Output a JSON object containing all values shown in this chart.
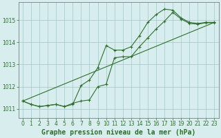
{
  "title": "Graphe pression niveau de la mer (hPa)",
  "background_color": "#cce8d4",
  "plot_bg": "#d8eeee",
  "grid_color": "#aacccc",
  "line_color": "#2d6e2d",
  "xlim": [
    -0.5,
    23.5
  ],
  "ylim": [
    1010.6,
    1015.8
  ],
  "yticks": [
    1011,
    1012,
    1013,
    1014,
    1015
  ],
  "xticks": [
    0,
    1,
    2,
    3,
    4,
    5,
    6,
    7,
    8,
    9,
    10,
    11,
    12,
    13,
    14,
    15,
    16,
    17,
    18,
    19,
    20,
    21,
    22,
    23
  ],
  "series1_x": [
    0,
    1,
    2,
    3,
    4,
    5,
    6,
    7,
    8,
    9,
    10,
    11,
    12,
    13,
    14,
    15,
    16,
    17,
    18,
    19,
    20,
    21,
    22,
    23
  ],
  "series1_y": [
    1011.35,
    1011.2,
    1011.1,
    1011.15,
    1011.2,
    1011.1,
    1011.2,
    1012.05,
    1012.3,
    1012.85,
    1013.85,
    1013.65,
    1013.65,
    1013.8,
    1014.3,
    1014.9,
    1015.25,
    1015.5,
    1015.45,
    1015.1,
    1014.9,
    1014.85,
    1014.9,
    1014.9
  ],
  "series2_x": [
    0,
    1,
    2,
    3,
    4,
    5,
    6,
    7,
    8,
    9,
    10,
    11,
    12,
    13,
    14,
    15,
    16,
    17,
    18,
    19,
    20,
    21,
    22,
    23
  ],
  "series2_y": [
    1011.35,
    1011.2,
    1011.1,
    1011.15,
    1011.2,
    1011.1,
    1011.25,
    1011.35,
    1011.4,
    1012.0,
    1012.1,
    1013.3,
    1013.35,
    1013.35,
    1013.8,
    1014.2,
    1014.6,
    1014.95,
    1015.35,
    1015.05,
    1014.85,
    1014.82,
    1014.88,
    1014.88
  ],
  "series3_x": [
    0,
    23
  ],
  "series3_y": [
    1011.35,
    1014.9
  ],
  "tick_fontsize": 5.5,
  "label_fontsize": 7
}
